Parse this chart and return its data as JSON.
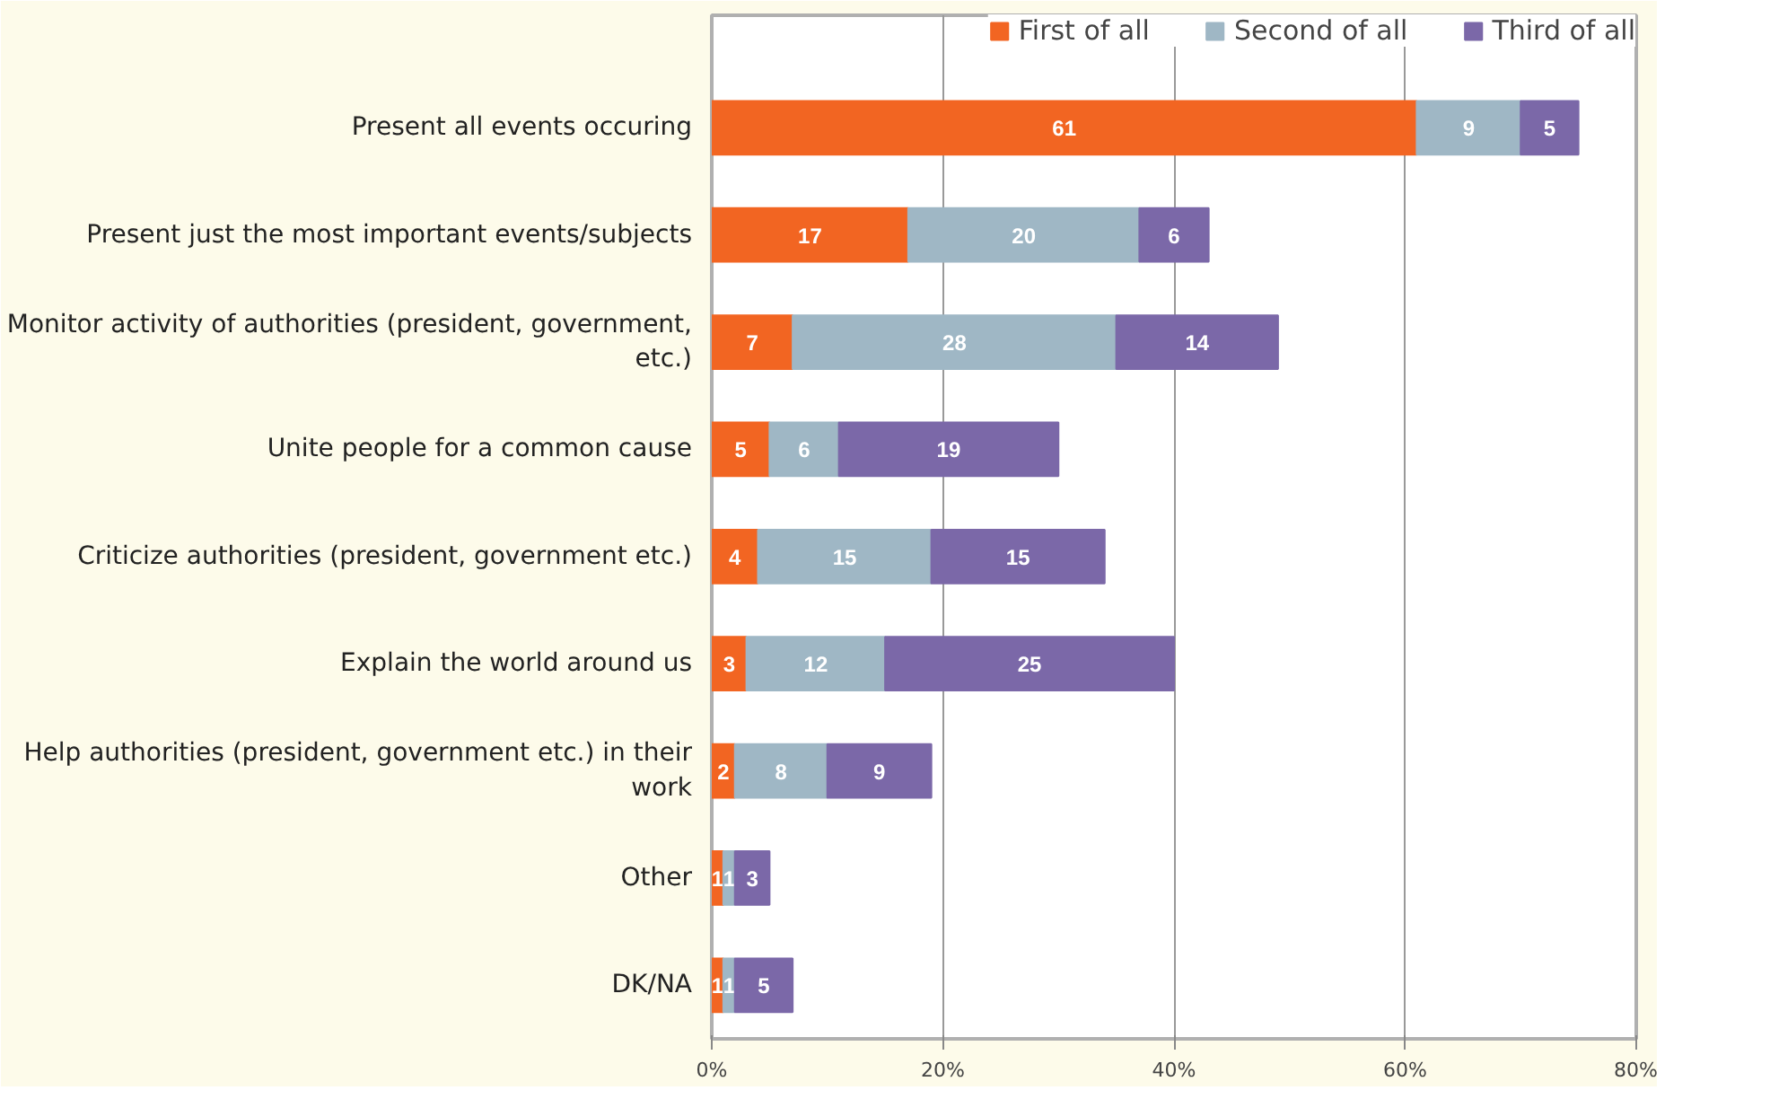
{
  "chart_data": {
    "type": "bar",
    "orientation": "horizontal",
    "stacked": true,
    "data_labels": true,
    "grid": "x",
    "legend": "top right",
    "categories": [
      "Present all events occuring",
      "Present just the most important events/subjects",
      "Monitor activity of authorities (president, government, etc.)",
      "Unite people for a common cause",
      "Criticize authorities (president, government etc.)",
      "Explain the world around us",
      "Help authorities (president, government etc.) in their work",
      "Other",
      "DK/NA"
    ],
    "xlim": [
      0,
      80
    ],
    "xticks": [
      {
        "value": 0,
        "label": "0%"
      },
      {
        "value": 20,
        "label": "20%"
      },
      {
        "value": 40,
        "label": "40%"
      },
      {
        "value": 60,
        "label": "60%"
      },
      {
        "value": 80,
        "label": "80%"
      }
    ],
    "series": [
      {
        "name": "First of all",
        "color": "#f26522",
        "values": [
          61,
          17,
          7,
          5,
          4,
          3,
          2,
          1,
          1
        ]
      },
      {
        "name": "Second of all",
        "color": "#9fb7c5",
        "values": [
          9,
          20,
          28,
          6,
          15,
          12,
          8,
          1,
          1
        ]
      },
      {
        "name": "Third of all",
        "color": "#7b68a8",
        "values": [
          5,
          6,
          14,
          19,
          15,
          25,
          9,
          3,
          5
        ]
      }
    ]
  }
}
